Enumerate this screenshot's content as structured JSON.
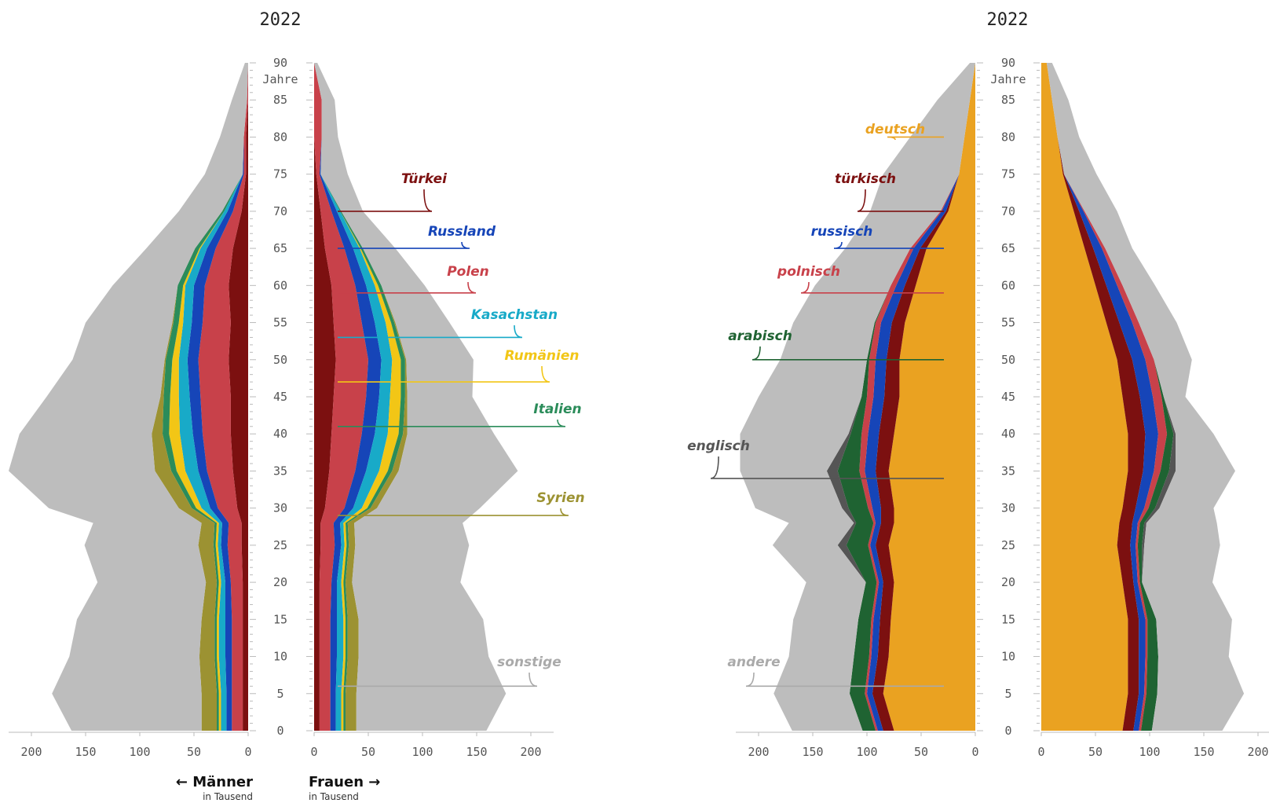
{
  "chart_data": [
    {
      "type": "area",
      "panel": "left",
      "title": "2022",
      "subtitle_unit_y": "Jahre",
      "left_label": "← Männer",
      "right_label": "Frauen →",
      "unit_label": "in Tausend",
      "ylim": [
        0,
        90
      ],
      "y_ticks": [
        0,
        5,
        10,
        15,
        20,
        25,
        30,
        35,
        40,
        45,
        50,
        55,
        60,
        65,
        70,
        75,
        80,
        85,
        90
      ],
      "left_x_ticks": [
        "200",
        "150",
        "100",
        "50",
        "0"
      ],
      "right_x_ticks": [
        "0",
        "50",
        "100",
        "150",
        "200"
      ],
      "ages": [
        0,
        5,
        10,
        15,
        20,
        25,
        28,
        30,
        35,
        40,
        45,
        50,
        55,
        60,
        65,
        70,
        75,
        80,
        85,
        90
      ],
      "series": [
        {
          "name": "Türkei",
          "color": "#7c1010",
          "men": [
            5,
            5,
            5,
            5,
            5,
            6,
            6,
            10,
            14,
            16,
            16,
            18,
            16,
            18,
            14,
            6,
            2,
            2,
            0,
            0
          ],
          "women": [
            5,
            5,
            5,
            5,
            5,
            6,
            6,
            10,
            14,
            16,
            18,
            20,
            18,
            16,
            10,
            6,
            2,
            0,
            0,
            0
          ]
        },
        {
          "name": "Polen",
          "color": "#c8414a",
          "men": [
            10,
            10,
            10,
            10,
            11,
            13,
            12,
            18,
            24,
            26,
            28,
            28,
            26,
            22,
            16,
            8,
            2,
            2,
            1,
            0
          ],
          "women": [
            10,
            10,
            10,
            10,
            11,
            13,
            12,
            18,
            24,
            28,
            30,
            30,
            26,
            22,
            18,
            10,
            3,
            7,
            7,
            0
          ]
        },
        {
          "name": "Russland",
          "color": "#1645b8",
          "men": [
            5,
            5,
            6,
            6,
            5,
            6,
            6,
            7,
            8,
            9,
            10,
            10,
            10,
            10,
            8,
            5,
            1,
            0,
            0,
            0
          ],
          "women": [
            5,
            5,
            6,
            6,
            5,
            6,
            6,
            8,
            10,
            12,
            12,
            12,
            12,
            10,
            8,
            5,
            1,
            0,
            0,
            0
          ]
        },
        {
          "name": "Kasachstan",
          "color": "#18aac8",
          "men": [
            5,
            5,
            6,
            6,
            4,
            3,
            3,
            8,
            12,
            12,
            10,
            8,
            8,
            8,
            6,
            3,
            0,
            0,
            0,
            0
          ],
          "women": [
            5,
            5,
            6,
            6,
            4,
            3,
            3,
            8,
            12,
            12,
            10,
            10,
            10,
            8,
            6,
            3,
            0,
            0,
            0,
            0
          ]
        },
        {
          "name": "Rumänien",
          "color": "#f2c616",
          "men": [
            2,
            2,
            2,
            2,
            2,
            2,
            2,
            5,
            8,
            10,
            8,
            6,
            4,
            2,
            1,
            0,
            0,
            0,
            0,
            0
          ],
          "women": [
            2,
            2,
            2,
            2,
            2,
            2,
            2,
            5,
            8,
            10,
            10,
            8,
            5,
            3,
            1,
            0,
            0,
            0,
            0,
            0
          ]
        },
        {
          "name": "Italien",
          "color": "#2b8c5a",
          "men": [
            2,
            2,
            2,
            2,
            2,
            2,
            2,
            4,
            5,
            6,
            6,
            6,
            5,
            5,
            4,
            2,
            0,
            0,
            0,
            0
          ],
          "women": [
            2,
            2,
            2,
            2,
            2,
            2,
            2,
            3,
            4,
            4,
            4,
            4,
            3,
            3,
            2,
            1,
            0,
            0,
            0,
            0
          ]
        },
        {
          "name": "Syrien",
          "color": "#9c9232",
          "men": [
            14,
            14,
            14,
            12,
            10,
            14,
            12,
            12,
            15,
            10,
            3,
            1,
            1,
            0,
            0,
            0,
            0,
            0,
            0,
            0
          ],
          "women": [
            10,
            10,
            10,
            10,
            6,
            6,
            6,
            6,
            6,
            4,
            2,
            1,
            1,
            0,
            0,
            0,
            0,
            0,
            0,
            0
          ]
        },
        {
          "name": "sonstige",
          "color": "#bdbdbd",
          "men": [
            120,
            138,
            120,
            115,
            100,
            105,
            100,
            120,
            135,
            122,
            105,
            85,
            80,
            60,
            45,
            40,
            35,
            22,
            14,
            3
          ],
          "women": [
            120,
            138,
            120,
            115,
            100,
            105,
            100,
            95,
            110,
            80,
            60,
            62,
            50,
            40,
            30,
            20,
            25,
            15,
            12,
            3
          ]
        }
      ],
      "annotations": [
        "Türkei",
        "Russland",
        "Polen",
        "Kasachstan",
        "Rumänien",
        "Italien",
        "Syrien",
        "sonstige"
      ]
    },
    {
      "type": "area",
      "panel": "right",
      "title": "2022",
      "subtitle_unit_y": "Jahre",
      "ylim": [
        0,
        90
      ],
      "y_ticks": [
        0,
        5,
        10,
        15,
        20,
        25,
        30,
        35,
        40,
        45,
        50,
        55,
        60,
        65,
        70,
        75,
        80,
        85,
        90
      ],
      "left_x_ticks": [
        "200",
        "150",
        "100",
        "50",
        "0"
      ],
      "right_x_ticks": [
        "0",
        "50",
        "100",
        "150",
        "200"
      ],
      "ages": [
        0,
        5,
        10,
        15,
        20,
        25,
        28,
        30,
        35,
        40,
        45,
        50,
        55,
        60,
        65,
        70,
        75,
        80,
        85,
        90
      ],
      "series": [
        {
          "name": "deutsch",
          "color": "#eaa221",
          "men": [
            75,
            85,
            80,
            78,
            75,
            80,
            75,
            75,
            80,
            75,
            70,
            70,
            65,
            55,
            45,
            25,
            15,
            10,
            5,
            0
          ],
          "women": [
            75,
            80,
            80,
            80,
            75,
            70,
            72,
            75,
            80,
            80,
            75,
            70,
            60,
            50,
            40,
            30,
            20,
            15,
            10,
            5
          ]
        },
        {
          "name": "türkisch",
          "color": "#7c1010",
          "men": [
            10,
            10,
            10,
            10,
            10,
            12,
            12,
            12,
            12,
            14,
            14,
            12,
            12,
            10,
            6,
            2,
            0,
            0,
            0,
            0
          ],
          "women": [
            10,
            10,
            10,
            10,
            10,
            12,
            12,
            12,
            14,
            16,
            16,
            14,
            12,
            10,
            8,
            5,
            1,
            0,
            0,
            0
          ]
        },
        {
          "name": "russisch",
          "color": "#1645b8",
          "men": [
            5,
            5,
            6,
            6,
            4,
            5,
            5,
            8,
            10,
            10,
            10,
            10,
            10,
            8,
            6,
            4,
            0,
            0,
            0,
            0
          ],
          "women": [
            5,
            5,
            6,
            6,
            4,
            5,
            5,
            8,
            10,
            12,
            12,
            12,
            12,
            10,
            8,
            4,
            0,
            0,
            0,
            0
          ]
        },
        {
          "name": "polnisch",
          "color": "#c8414a",
          "men": [
            2,
            2,
            2,
            2,
            2,
            2,
            2,
            4,
            5,
            6,
            6,
            6,
            5,
            5,
            3,
            1,
            0,
            0,
            0,
            0
          ],
          "women": [
            2,
            2,
            2,
            2,
            2,
            2,
            2,
            4,
            6,
            8,
            8,
            8,
            6,
            5,
            3,
            1,
            0,
            0,
            0,
            0
          ]
        },
        {
          "name": "arabisch",
          "color": "#1f6332",
          "men": [
            12,
            14,
            14,
            12,
            10,
            20,
            16,
            18,
            20,
            10,
            5,
            2,
            1,
            0,
            0,
            0,
            0,
            0,
            0,
            0
          ],
          "women": [
            10,
            10,
            10,
            8,
            2,
            4,
            4,
            6,
            8,
            6,
            2,
            0,
            0,
            0,
            0,
            0,
            0,
            0,
            0,
            0
          ]
        },
        {
          "name": "englisch",
          "color": "#555555",
          "men": [
            0,
            0,
            0,
            0,
            0,
            8,
            2,
            6,
            10,
            2,
            0,
            0,
            0,
            0,
            0,
            0,
            0,
            0,
            0,
            0
          ],
          "women": [
            0,
            0,
            0,
            0,
            0,
            2,
            2,
            4,
            6,
            2,
            0,
            0,
            0,
            0,
            0,
            0,
            0,
            0,
            0,
            0
          ]
        },
        {
          "name": "andere",
          "color": "#bdbdbd",
          "men": [
            65,
            70,
            60,
            60,
            55,
            60,
            60,
            80,
            80,
            100,
            95,
            80,
            75,
            70,
            60,
            65,
            70,
            50,
            30,
            5
          ],
          "women": [
            65,
            80,
            65,
            70,
            65,
            70,
            65,
            50,
            55,
            35,
            20,
            35,
            35,
            30,
            25,
            30,
            30,
            20,
            15,
            5
          ]
        }
      ],
      "annotations": [
        "deutsch",
        "türkisch",
        "russisch",
        "polnisch",
        "arabisch",
        "englisch",
        "andere"
      ]
    }
  ]
}
